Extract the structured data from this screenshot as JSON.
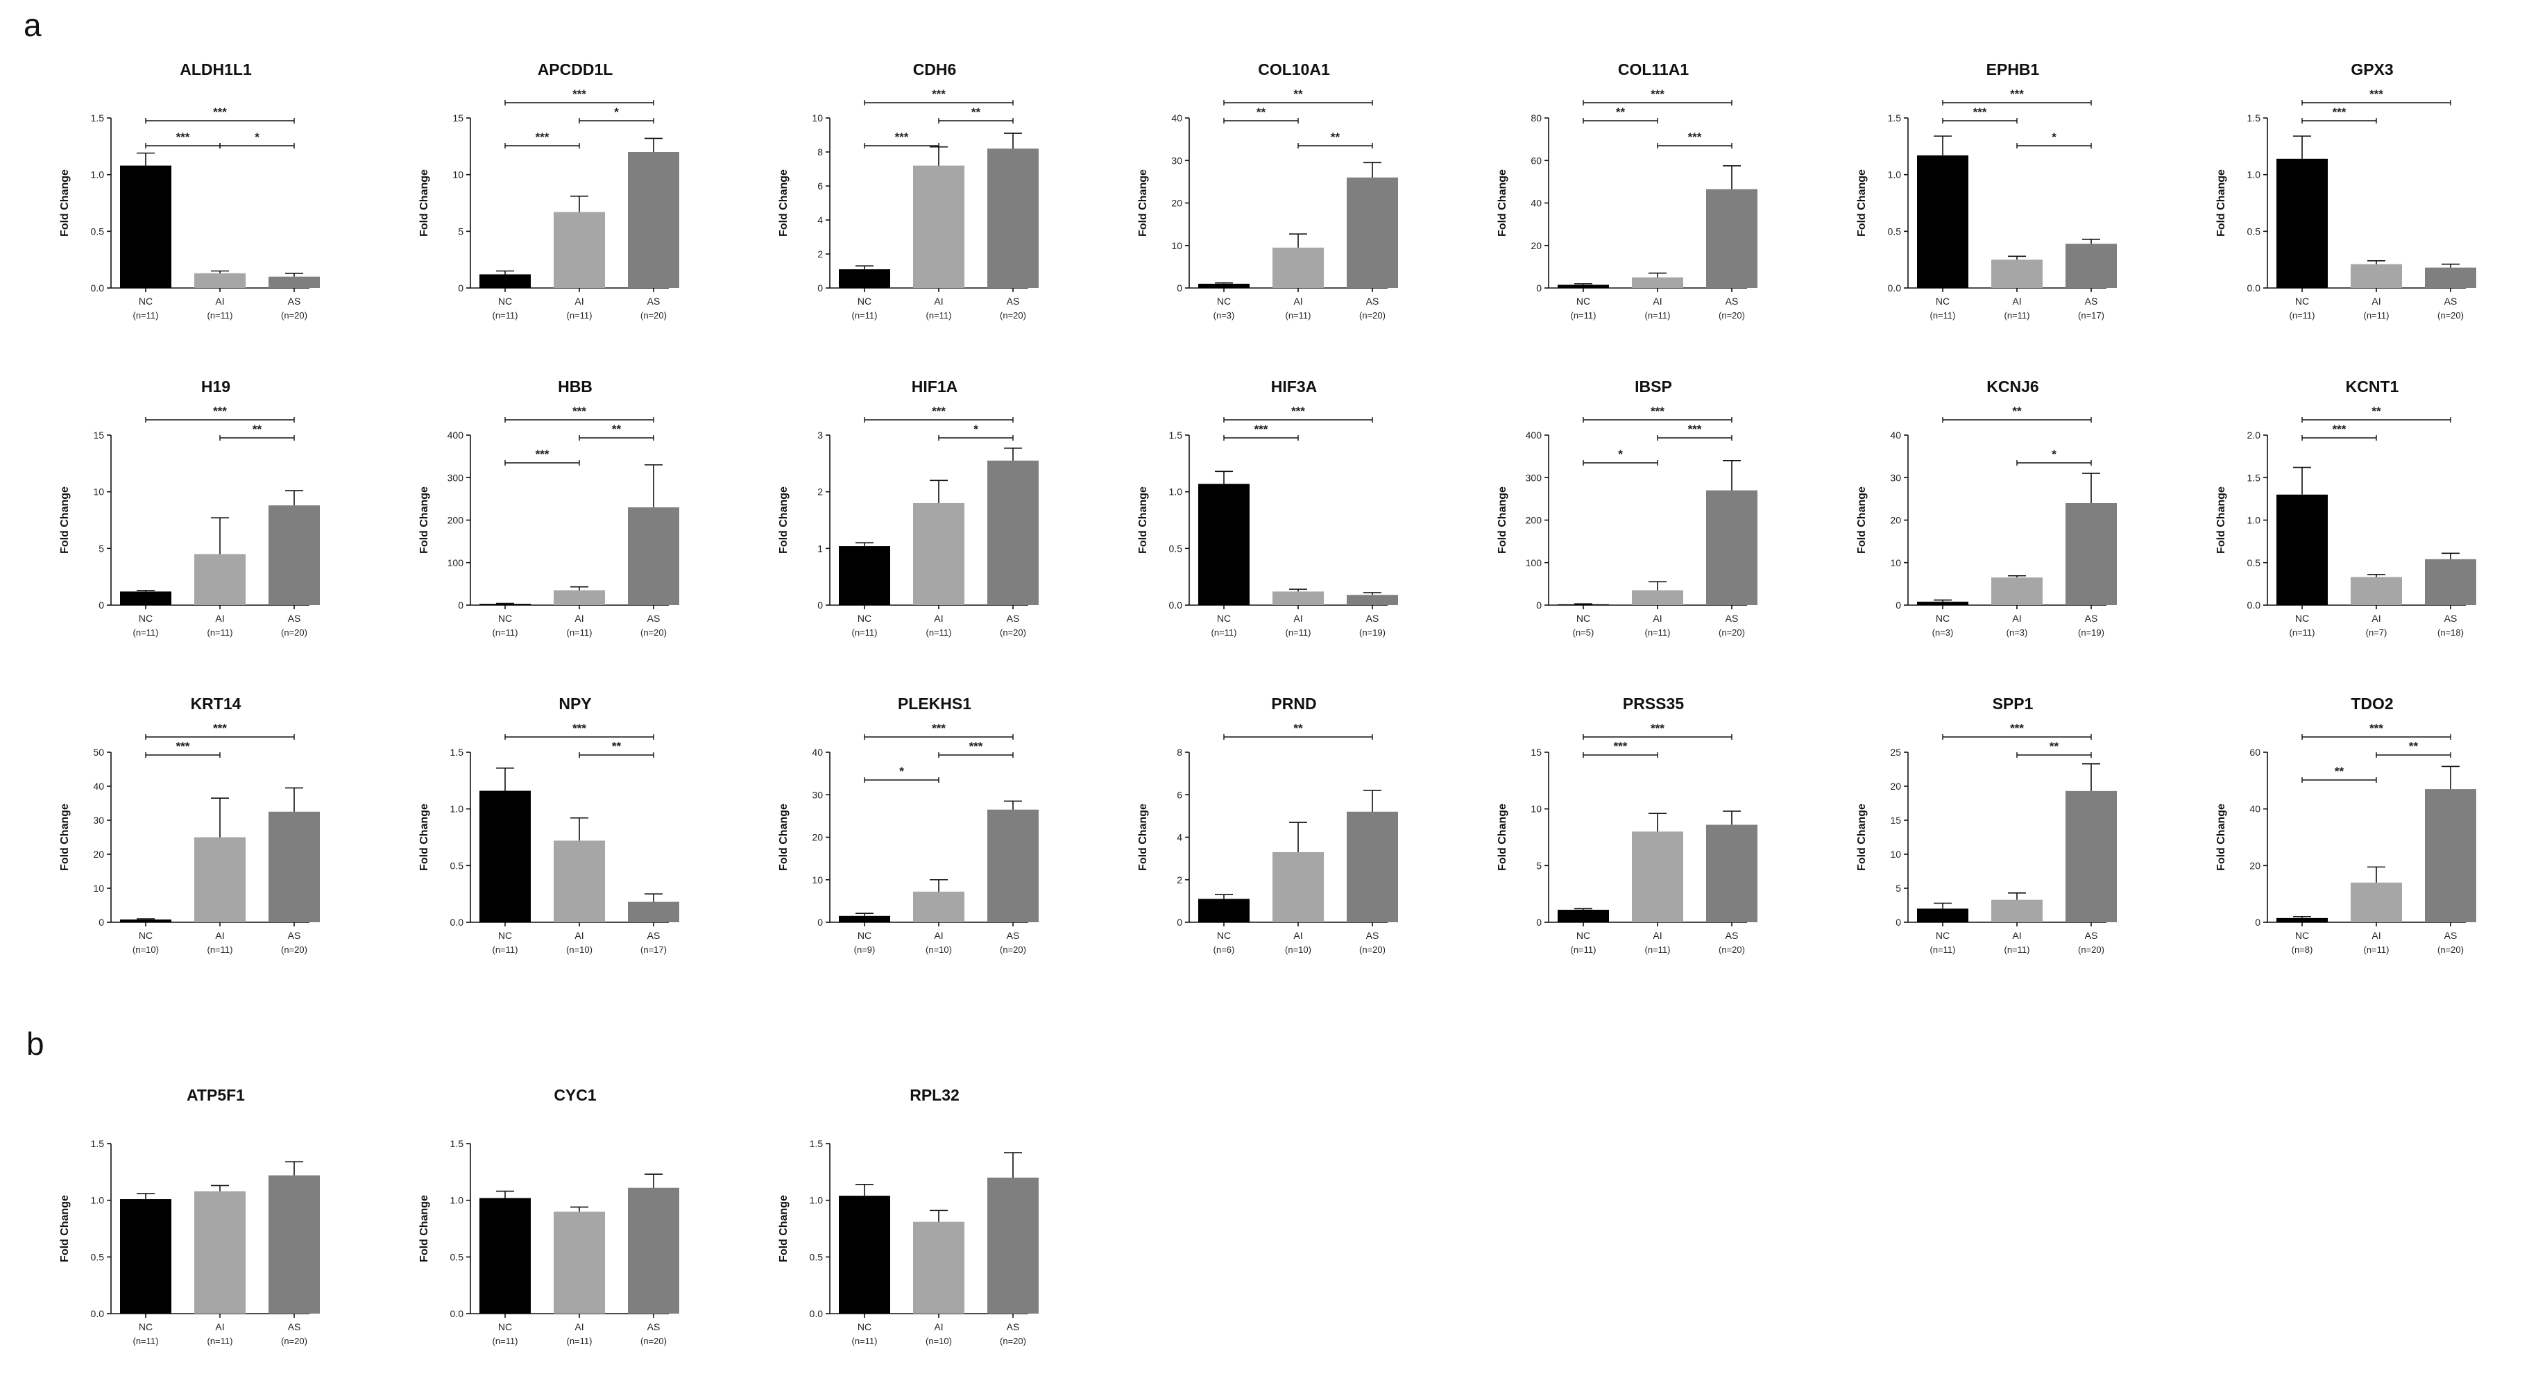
{
  "figure": {
    "panels": [
      {
        "id": "a",
        "letter": "a"
      },
      {
        "id": "b",
        "letter": "b"
      }
    ],
    "ylabel": "Fold Change",
    "group_colors": {
      "NC": "#000000",
      "AI": "#a6a6a6",
      "AS": "#7f7f7f"
    }
  },
  "chart_data": [
    {
      "panel": "a",
      "type": "bar",
      "title": "ALDH1L1",
      "ylabel": "Fold Change",
      "categories": [
        "NC",
        "AI",
        "AS"
      ],
      "n_labels": [
        "(n=11)",
        "(n=11)",
        "(n=20)"
      ],
      "values": [
        1.08,
        0.13,
        0.1
      ],
      "errors": [
        0.11,
        0.02,
        0.03
      ],
      "ylim": [
        0,
        1.5
      ],
      "yticks": [
        "0.0",
        "0.5",
        "1.0",
        "1.5"
      ],
      "significance": [
        {
          "from": 0,
          "to": 1,
          "label": "***",
          "level": 1
        },
        {
          "from": 1,
          "to": 2,
          "label": "*",
          "level": 1
        },
        {
          "from": 0,
          "to": 2,
          "label": "***",
          "level": 2
        }
      ]
    },
    {
      "panel": "a",
      "type": "bar",
      "title": "APCDD1L",
      "ylabel": "Fold Change",
      "categories": [
        "NC",
        "AI",
        "AS"
      ],
      "n_labels": [
        "(n=11)",
        "(n=11)",
        "(n=20)"
      ],
      "values": [
        1.2,
        6.7,
        12.0
      ],
      "errors": [
        0.3,
        1.4,
        1.2
      ],
      "ylim": [
        0,
        15
      ],
      "yticks": [
        "0",
        "5",
        "10",
        "15"
      ],
      "significance": [
        {
          "from": 0,
          "to": 1,
          "label": "***",
          "level": 1
        },
        {
          "from": 1,
          "to": 2,
          "label": "*",
          "level": 2
        },
        {
          "from": 0,
          "to": 2,
          "label": "***",
          "level": 3
        }
      ]
    },
    {
      "panel": "a",
      "type": "bar",
      "title": "CDH6",
      "ylabel": "Fold Change",
      "categories": [
        "NC",
        "AI",
        "AS"
      ],
      "n_labels": [
        "(n=11)",
        "(n=11)",
        "(n=20)"
      ],
      "values": [
        1.1,
        7.2,
        8.2
      ],
      "errors": [
        0.2,
        1.1,
        0.9
      ],
      "ylim": [
        0,
        10
      ],
      "yticks": [
        "0",
        "2",
        "4",
        "6",
        "8",
        "10"
      ],
      "significance": [
        {
          "from": 0,
          "to": 1,
          "label": "***",
          "level": 1
        },
        {
          "from": 1,
          "to": 2,
          "label": "**",
          "level": 2
        },
        {
          "from": 0,
          "to": 2,
          "label": "***",
          "level": 3
        }
      ]
    },
    {
      "panel": "a",
      "type": "bar",
      "title": "COL10A1",
      "ylabel": "Fold Change",
      "categories": [
        "NC",
        "AI",
        "AS"
      ],
      "n_labels": [
        "(n=3)",
        "(n=11)",
        "(n=20)"
      ],
      "values": [
        1.0,
        9.5,
        26.0
      ],
      "errors": [
        0.2,
        3.2,
        3.5
      ],
      "ylim": [
        0,
        40
      ],
      "yticks": [
        "0",
        "10",
        "20",
        "30",
        "40"
      ],
      "significance": [
        {
          "from": 0,
          "to": 1,
          "label": "**",
          "level": 2
        },
        {
          "from": 1,
          "to": 2,
          "label": "**",
          "level": 1
        },
        {
          "from": 0,
          "to": 2,
          "label": "**",
          "level": 3
        }
      ]
    },
    {
      "panel": "a",
      "type": "bar",
      "title": "COL11A1",
      "ylabel": "Fold Change",
      "categories": [
        "NC",
        "AI",
        "AS"
      ],
      "n_labels": [
        "(n=11)",
        "(n=11)",
        "(n=20)"
      ],
      "values": [
        1.5,
        5.0,
        46.5
      ],
      "errors": [
        0.5,
        2.0,
        11.0
      ],
      "ylim": [
        0,
        80
      ],
      "yticks": [
        "0",
        "20",
        "40",
        "60",
        "80"
      ],
      "significance": [
        {
          "from": 0,
          "to": 1,
          "label": "**",
          "level": 2
        },
        {
          "from": 1,
          "to": 2,
          "label": "***",
          "level": 1
        },
        {
          "from": 0,
          "to": 2,
          "label": "***",
          "level": 3
        }
      ]
    },
    {
      "panel": "a",
      "type": "bar",
      "title": "EPHB1",
      "ylabel": "Fold Change",
      "categories": [
        "NC",
        "AI",
        "AS"
      ],
      "n_labels": [
        "(n=11)",
        "(n=11)",
        "(n=17)"
      ],
      "values": [
        1.17,
        0.25,
        0.39
      ],
      "errors": [
        0.17,
        0.03,
        0.04
      ],
      "ylim": [
        0,
        1.5
      ],
      "yticks": [
        "0.0",
        "0.5",
        "1.0",
        "1.5"
      ],
      "significance": [
        {
          "from": 0,
          "to": 1,
          "label": "***",
          "level": 2
        },
        {
          "from": 1,
          "to": 2,
          "label": "*",
          "level": 1
        },
        {
          "from": 0,
          "to": 2,
          "label": "***",
          "level": 3
        }
      ]
    },
    {
      "panel": "a",
      "type": "bar",
      "title": "GPX3",
      "ylabel": "Fold Change",
      "categories": [
        "NC",
        "AI",
        "AS"
      ],
      "n_labels": [
        "(n=11)",
        "(n=11)",
        "(n=20)"
      ],
      "values": [
        1.14,
        0.21,
        0.18
      ],
      "errors": [
        0.2,
        0.03,
        0.03
      ],
      "ylim": [
        0,
        1.5
      ],
      "yticks": [
        "0.0",
        "0.5",
        "1.0",
        "1.5"
      ],
      "significance": [
        {
          "from": 0,
          "to": 1,
          "label": "***",
          "level": 2
        },
        {
          "from": 0,
          "to": 2,
          "label": "***",
          "level": 3
        }
      ]
    },
    {
      "panel": "a",
      "type": "bar",
      "title": "H19",
      "ylabel": "Fold Change",
      "categories": [
        "NC",
        "AI",
        "AS"
      ],
      "n_labels": [
        "(n=11)",
        "(n=11)",
        "(n=20)"
      ],
      "values": [
        1.2,
        4.5,
        8.8
      ],
      "errors": [
        0.1,
        3.2,
        1.3
      ],
      "ylim": [
        0,
        15
      ],
      "yticks": [
        "0",
        "5",
        "10",
        "15"
      ],
      "significance": [
        {
          "from": 1,
          "to": 2,
          "label": "**",
          "level": 2
        },
        {
          "from": 0,
          "to": 2,
          "label": "***",
          "level": 3
        }
      ]
    },
    {
      "panel": "a",
      "type": "bar",
      "title": "HBB",
      "ylabel": "Fold Change",
      "categories": [
        "NC",
        "AI",
        "AS"
      ],
      "n_labels": [
        "(n=11)",
        "(n=11)",
        "(n=20)"
      ],
      "values": [
        3,
        35,
        230
      ],
      "errors": [
        1,
        8,
        100
      ],
      "ylim": [
        0,
        400
      ],
      "yticks": [
        "0",
        "100",
        "200",
        "300",
        "400"
      ],
      "significance": [
        {
          "from": 0,
          "to": 1,
          "label": "***",
          "level": 1
        },
        {
          "from": 1,
          "to": 2,
          "label": "**",
          "level": 2
        },
        {
          "from": 0,
          "to": 2,
          "label": "***",
          "level": 3
        }
      ]
    },
    {
      "panel": "a",
      "type": "bar",
      "title": "HIF1A",
      "ylabel": "Fold Change",
      "categories": [
        "NC",
        "AI",
        "AS"
      ],
      "n_labels": [
        "(n=11)",
        "(n=11)",
        "(n=20)"
      ],
      "values": [
        1.04,
        1.8,
        2.55
      ],
      "errors": [
        0.06,
        0.4,
        0.22
      ],
      "ylim": [
        0,
        3
      ],
      "yticks": [
        "0",
        "1",
        "2",
        "3"
      ],
      "significance": [
        {
          "from": 1,
          "to": 2,
          "label": "*",
          "level": 2
        },
        {
          "from": 0,
          "to": 2,
          "label": "***",
          "level": 3
        }
      ]
    },
    {
      "panel": "a",
      "type": "bar",
      "title": "HIF3A",
      "ylabel": "Fold Change",
      "categories": [
        "NC",
        "AI",
        "AS"
      ],
      "n_labels": [
        "(n=11)",
        "(n=11)",
        "(n=19)"
      ],
      "values": [
        1.07,
        0.12,
        0.09
      ],
      "errors": [
        0.11,
        0.02,
        0.02
      ],
      "ylim": [
        0,
        1.5
      ],
      "yticks": [
        "0.0",
        "0.5",
        "1.0",
        "1.5"
      ],
      "significance": [
        {
          "from": 0,
          "to": 1,
          "label": "***",
          "level": 2
        },
        {
          "from": 0,
          "to": 2,
          "label": "***",
          "level": 3
        }
      ]
    },
    {
      "panel": "a",
      "type": "bar",
      "title": "IBSP",
      "ylabel": "Fold Change",
      "categories": [
        "NC",
        "AI",
        "AS"
      ],
      "n_labels": [
        "(n=5)",
        "(n=11)",
        "(n=20)"
      ],
      "values": [
        2,
        35,
        270
      ],
      "errors": [
        1,
        20,
        70
      ],
      "ylim": [
        0,
        400
      ],
      "yticks": [
        "0",
        "100",
        "200",
        "300",
        "400"
      ],
      "significance": [
        {
          "from": 0,
          "to": 1,
          "label": "*",
          "level": 1
        },
        {
          "from": 1,
          "to": 2,
          "label": "***",
          "level": 2
        },
        {
          "from": 0,
          "to": 2,
          "label": "***",
          "level": 3
        }
      ]
    },
    {
      "panel": "a",
      "type": "bar",
      "title": "KCNJ6",
      "ylabel": "Fold Change",
      "categories": [
        "NC",
        "AI",
        "AS"
      ],
      "n_labels": [
        "(n=3)",
        "(n=3)",
        "(n=19)"
      ],
      "values": [
        0.8,
        6.5,
        24.0
      ],
      "errors": [
        0.4,
        0.4,
        7.0
      ],
      "ylim": [
        0,
        40
      ],
      "yticks": [
        "0",
        "10",
        "20",
        "30",
        "40"
      ],
      "significance": [
        {
          "from": 1,
          "to": 2,
          "label": "*",
          "level": 1
        },
        {
          "from": 0,
          "to": 2,
          "label": "**",
          "level": 3
        }
      ]
    },
    {
      "panel": "a",
      "type": "bar",
      "title": "KCNT1",
      "ylabel": "Fold Change",
      "categories": [
        "NC",
        "AI",
        "AS"
      ],
      "n_labels": [
        "(n=11)",
        "(n=7)",
        "(n=18)"
      ],
      "values": [
        1.3,
        0.33,
        0.54
      ],
      "errors": [
        0.32,
        0.03,
        0.07
      ],
      "ylim": [
        0,
        2.0
      ],
      "yticks": [
        "0.0",
        "0.5",
        "1.0",
        "1.5",
        "2.0"
      ],
      "significance": [
        {
          "from": 0,
          "to": 1,
          "label": "***",
          "level": 2
        },
        {
          "from": 0,
          "to": 2,
          "label": "**",
          "level": 3
        }
      ]
    },
    {
      "panel": "a",
      "type": "bar",
      "title": "KRT14",
      "ylabel": "Fold Change",
      "categories": [
        "NC",
        "AI",
        "AS"
      ],
      "n_labels": [
        "(n=10)",
        "(n=11)",
        "(n=20)"
      ],
      "values": [
        0.8,
        25.0,
        32.5
      ],
      "errors": [
        0.2,
        11.5,
        7.0
      ],
      "ylim": [
        0,
        50
      ],
      "yticks": [
        "0",
        "10",
        "20",
        "30",
        "40",
        "50"
      ],
      "significance": [
        {
          "from": 0,
          "to": 1,
          "label": "***",
          "level": 2
        },
        {
          "from": 0,
          "to": 2,
          "label": "***",
          "level": 3
        }
      ]
    },
    {
      "panel": "a",
      "type": "bar",
      "title": "NPY",
      "ylabel": "Fold Change",
      "categories": [
        "NC",
        "AI",
        "AS"
      ],
      "n_labels": [
        "(n=11)",
        "(n=10)",
        "(n=17)"
      ],
      "values": [
        1.16,
        0.72,
        0.18
      ],
      "errors": [
        0.2,
        0.2,
        0.07
      ],
      "ylim": [
        0,
        1.5
      ],
      "yticks": [
        "0.0",
        "0.5",
        "1.0",
        "1.5"
      ],
      "significance": [
        {
          "from": 1,
          "to": 2,
          "label": "**",
          "level": 2
        },
        {
          "from": 0,
          "to": 2,
          "label": "***",
          "level": 3
        }
      ]
    },
    {
      "panel": "a",
      "type": "bar",
      "title": "PLEKHS1",
      "ylabel": "Fold Change",
      "categories": [
        "NC",
        "AI",
        "AS"
      ],
      "n_labels": [
        "(n=9)",
        "(n=10)",
        "(n=20)"
      ],
      "values": [
        1.5,
        7.2,
        26.5
      ],
      "errors": [
        0.6,
        2.8,
        2.0
      ],
      "ylim": [
        0,
        40
      ],
      "yticks": [
        "0",
        "10",
        "20",
        "30",
        "40"
      ],
      "significance": [
        {
          "from": 0,
          "to": 1,
          "label": "*",
          "level": 1
        },
        {
          "from": 1,
          "to": 2,
          "label": "***",
          "level": 2
        },
        {
          "from": 0,
          "to": 2,
          "label": "***",
          "level": 3
        }
      ]
    },
    {
      "panel": "a",
      "type": "bar",
      "title": "PRND",
      "ylabel": "Fold Change",
      "categories": [
        "NC",
        "AI",
        "AS"
      ],
      "n_labels": [
        "(n=6)",
        "(n=10)",
        "(n=20)"
      ],
      "values": [
        1.1,
        3.3,
        5.2
      ],
      "errors": [
        0.2,
        1.4,
        1.0
      ],
      "ylim": [
        0,
        8
      ],
      "yticks": [
        "0",
        "2",
        "4",
        "6",
        "8"
      ],
      "significance": [
        {
          "from": 0,
          "to": 2,
          "label": "**",
          "level": 3
        }
      ]
    },
    {
      "panel": "a",
      "type": "bar",
      "title": "PRSS35",
      "ylabel": "Fold Change",
      "categories": [
        "NC",
        "AI",
        "AS"
      ],
      "n_labels": [
        "(n=11)",
        "(n=11)",
        "(n=20)"
      ],
      "values": [
        1.1,
        8.0,
        8.6
      ],
      "errors": [
        0.1,
        1.6,
        1.2
      ],
      "ylim": [
        0,
        15
      ],
      "yticks": [
        "0",
        "5",
        "10",
        "15"
      ],
      "significance": [
        {
          "from": 0,
          "to": 1,
          "label": "***",
          "level": 2
        },
        {
          "from": 0,
          "to": 2,
          "label": "***",
          "level": 3
        }
      ]
    },
    {
      "panel": "a",
      "type": "bar",
      "title": "SPP1",
      "ylabel": "Fold Change",
      "categories": [
        "NC",
        "AI",
        "AS"
      ],
      "n_labels": [
        "(n=11)",
        "(n=11)",
        "(n=20)"
      ],
      "values": [
        2.0,
        3.3,
        19.3
      ],
      "errors": [
        0.8,
        1.0,
        4.0
      ],
      "ylim": [
        0,
        25
      ],
      "yticks": [
        "0",
        "5",
        "10",
        "15",
        "20",
        "25"
      ],
      "significance": [
        {
          "from": 1,
          "to": 2,
          "label": "**",
          "level": 2
        },
        {
          "from": 0,
          "to": 2,
          "label": "***",
          "level": 3
        }
      ]
    },
    {
      "panel": "a",
      "type": "bar",
      "title": "TDO2",
      "ylabel": "Fold Change",
      "categories": [
        "NC",
        "AI",
        "AS"
      ],
      "n_labels": [
        "(n=8)",
        "(n=11)",
        "(n=20)"
      ],
      "values": [
        1.5,
        14.0,
        47.0
      ],
      "errors": [
        0.5,
        5.5,
        8.0
      ],
      "ylim": [
        0,
        60
      ],
      "yticks": [
        "0",
        "20",
        "40",
        "60"
      ],
      "significance": [
        {
          "from": 0,
          "to": 1,
          "label": "**",
          "level": 1
        },
        {
          "from": 1,
          "to": 2,
          "label": "**",
          "level": 2
        },
        {
          "from": 0,
          "to": 2,
          "label": "***",
          "level": 3
        }
      ]
    },
    {
      "panel": "b",
      "type": "bar",
      "title": "ATP5F1",
      "ylabel": "Fold Change",
      "categories": [
        "NC",
        "AI",
        "AS"
      ],
      "n_labels": [
        "(n=11)",
        "(n=11)",
        "(n=20)"
      ],
      "values": [
        1.01,
        1.08,
        1.22
      ],
      "errors": [
        0.05,
        0.05,
        0.12
      ],
      "ylim": [
        0,
        1.5
      ],
      "yticks": [
        "0.0",
        "0.5",
        "1.0",
        "1.5"
      ],
      "significance": []
    },
    {
      "panel": "b",
      "type": "bar",
      "title": "CYC1",
      "ylabel": "Fold Change",
      "categories": [
        "NC",
        "AI",
        "AS"
      ],
      "n_labels": [
        "(n=11)",
        "(n=11)",
        "(n=20)"
      ],
      "values": [
        1.02,
        0.9,
        1.11
      ],
      "errors": [
        0.06,
        0.04,
        0.12
      ],
      "ylim": [
        0,
        1.5
      ],
      "yticks": [
        "0.0",
        "0.5",
        "1.0",
        "1.5"
      ],
      "significance": []
    },
    {
      "panel": "b",
      "type": "bar",
      "title": "RPL32",
      "ylabel": "Fold Change",
      "categories": [
        "NC",
        "AI",
        "AS"
      ],
      "n_labels": [
        "(n=11)",
        "(n=10)",
        "(n=20)"
      ],
      "values": [
        1.04,
        0.81,
        1.2
      ],
      "errors": [
        0.1,
        0.1,
        0.22
      ],
      "ylim": [
        0,
        1.5
      ],
      "yticks": [
        "0.0",
        "0.5",
        "1.0",
        "1.5"
      ],
      "significance": []
    }
  ]
}
